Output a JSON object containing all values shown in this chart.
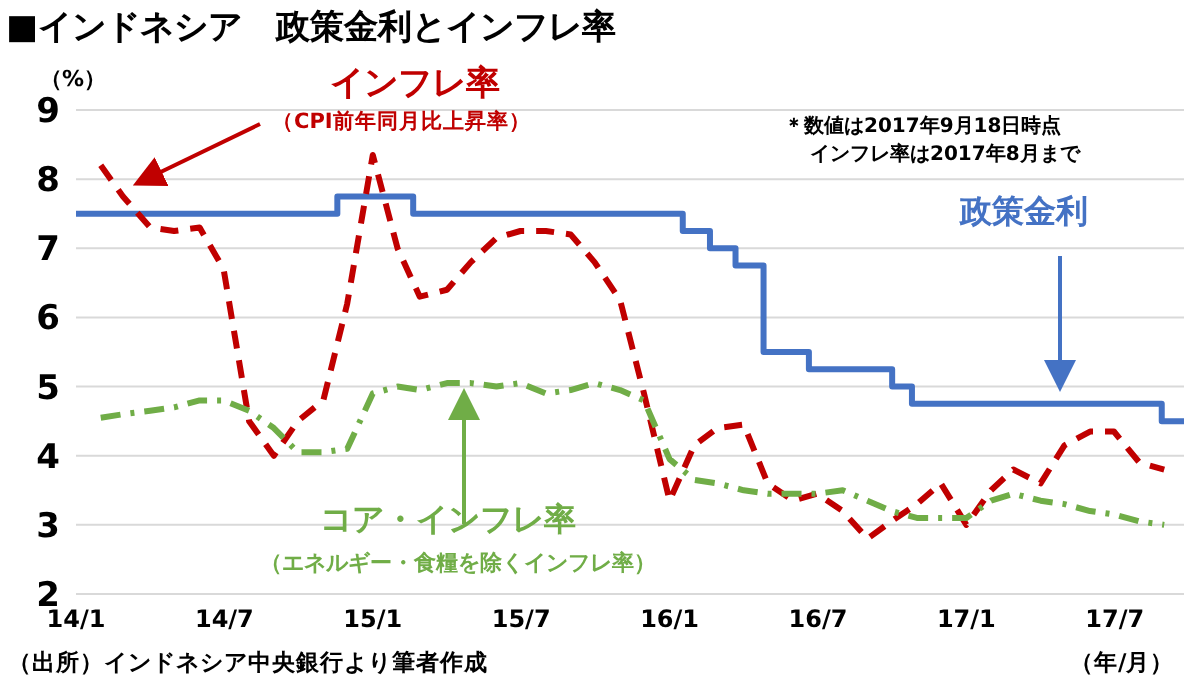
{
  "chart_data": {
    "type": "line",
    "title": "■インドネシア　政策金利とインフレ率",
    "ylabel": "（%）",
    "xlabel": "（年/月）",
    "xlim": [
      "2014-01-01",
      "2017-09-25"
    ],
    "xticks": [
      {
        "value": "2014-01-01",
        "label": "14/1"
      },
      {
        "value": "2014-07-01",
        "label": "14/7"
      },
      {
        "value": "2015-01-01",
        "label": "15/1"
      },
      {
        "value": "2015-07-01",
        "label": "15/7"
      },
      {
        "value": "2016-01-01",
        "label": "16/1"
      },
      {
        "value": "2016-07-01",
        "label": "16/7"
      },
      {
        "value": "2017-01-01",
        "label": "17/1"
      },
      {
        "value": "2017-07-01",
        "label": "17/7"
      }
    ],
    "ylim": [
      2,
      9
    ],
    "yticks": [
      2,
      3,
      4,
      5,
      6,
      7,
      8,
      9
    ],
    "grid": "y",
    "legend": false,
    "marker": "none",
    "series": [
      {
        "name": "政策金利",
        "type": "step",
        "color": "#4472c4",
        "line_style": "solid",
        "x": [
          "2014-01-01",
          "2014-11-18",
          "2015-02-20",
          "2016-01-17",
          "2016-02-20",
          "2016-03-21",
          "2016-04-25",
          "2016-06-20",
          "2016-10-01",
          "2016-10-25",
          "2017-08-28",
          "2017-09-25"
        ],
        "values": [
          7.5,
          7.75,
          7.5,
          7.25,
          7.0,
          6.75,
          5.5,
          5.25,
          5.0,
          4.75,
          4.5,
          4.5
        ]
      },
      {
        "name": "インフレ率",
        "type": "line",
        "color": "#c00000",
        "line_style": "dashed",
        "x": [
          "2014-01-31",
          "2014-02-28",
          "2014-03-31",
          "2014-04-30",
          "2014-05-31",
          "2014-06-30",
          "2014-07-31",
          "2014-08-31",
          "2014-09-30",
          "2014-10-31",
          "2014-11-30",
          "2014-12-31",
          "2015-01-31",
          "2015-02-28",
          "2015-03-31",
          "2015-04-30",
          "2015-05-31",
          "2015-06-30",
          "2015-07-31",
          "2015-08-31",
          "2015-09-30",
          "2015-10-31",
          "2015-11-30",
          "2015-12-31",
          "2016-01-31",
          "2016-02-29",
          "2016-03-31",
          "2016-04-30",
          "2016-05-31",
          "2016-06-30",
          "2016-07-31",
          "2016-08-31",
          "2016-09-30",
          "2016-10-31",
          "2016-11-30",
          "2016-12-31",
          "2017-01-31",
          "2017-02-28",
          "2017-03-31",
          "2017-04-30",
          "2017-05-31",
          "2017-06-30",
          "2017-07-31",
          "2017-08-31"
        ],
        "values": [
          8.2,
          7.75,
          7.3,
          7.25,
          7.3,
          6.7,
          4.5,
          4.0,
          4.5,
          4.8,
          6.2,
          8.35,
          7.0,
          6.3,
          6.4,
          6.8,
          7.15,
          7.25,
          7.25,
          7.2,
          6.8,
          6.25,
          4.9,
          3.35,
          4.15,
          4.4,
          4.45,
          3.6,
          3.35,
          3.45,
          3.2,
          2.8,
          3.05,
          3.3,
          3.6,
          3.0,
          3.5,
          3.8,
          3.6,
          4.15,
          4.35,
          4.35,
          3.9,
          3.8
        ]
      },
      {
        "name": "コア・インフレ率",
        "type": "line",
        "color": "#70ad47",
        "line_style": "dotted",
        "x": [
          "2014-01-31",
          "2014-02-28",
          "2014-03-31",
          "2014-04-30",
          "2014-05-31",
          "2014-06-30",
          "2014-07-31",
          "2014-08-31",
          "2014-09-30",
          "2014-10-31",
          "2014-11-30",
          "2014-12-31",
          "2015-01-31",
          "2015-02-28",
          "2015-03-31",
          "2015-04-30",
          "2015-05-31",
          "2015-06-30",
          "2015-07-31",
          "2015-08-31",
          "2015-09-30",
          "2015-10-31",
          "2015-11-30",
          "2015-12-31",
          "2016-01-31",
          "2016-02-29",
          "2016-03-31",
          "2016-04-30",
          "2016-05-31",
          "2016-06-30",
          "2016-07-31",
          "2016-08-31",
          "2016-09-30",
          "2016-10-31",
          "2016-11-30",
          "2016-12-31",
          "2017-01-31",
          "2017-02-28",
          "2017-03-31",
          "2017-04-30",
          "2017-05-31",
          "2017-06-30",
          "2017-07-31",
          "2017-08-31"
        ],
        "values": [
          4.55,
          4.6,
          4.65,
          4.7,
          4.8,
          4.8,
          4.65,
          4.4,
          4.05,
          4.05,
          4.1,
          4.9,
          5.0,
          4.95,
          5.05,
          5.05,
          5.0,
          5.05,
          4.9,
          4.95,
          5.05,
          4.95,
          4.8,
          3.95,
          3.65,
          3.6,
          3.5,
          3.45,
          3.45,
          3.45,
          3.5,
          3.35,
          3.2,
          3.1,
          3.1,
          3.1,
          3.35,
          3.45,
          3.35,
          3.3,
          3.2,
          3.15,
          3.05,
          3.0
        ]
      }
    ],
    "annotations": [
      "（CPI前年同月比上昇率）",
      "（エネルギー・食糧を除くインフレ率）",
      "＊数値は2017年9月18日時点",
      "インフレ率は2017年8月まで",
      "（出所）インドネシア中央銀行より筆者作成"
    ]
  }
}
